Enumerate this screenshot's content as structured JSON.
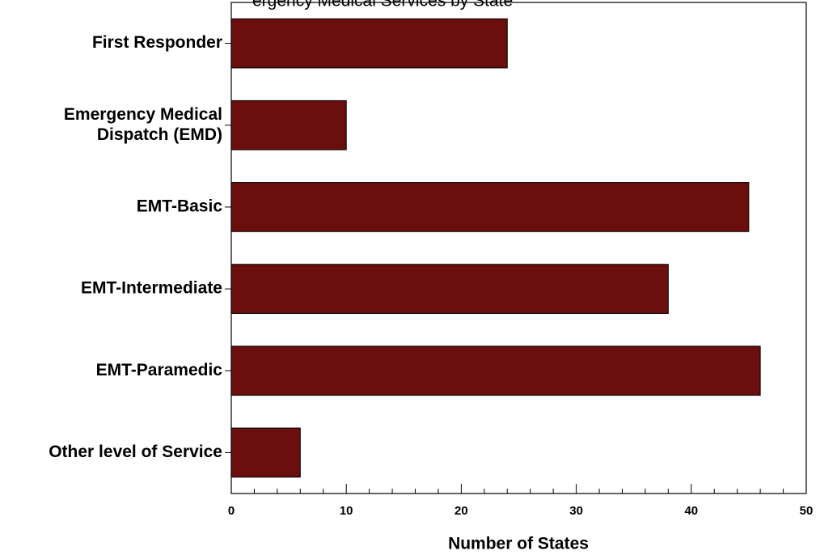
{
  "chart_data": {
    "type": "bar",
    "orientation": "horizontal",
    "title_fragment": "ergency Medical Services by State",
    "categories": [
      [
        "First Responder"
      ],
      [
        "Emergency Medical",
        "Dispatch (EMD)"
      ],
      [
        "EMT-Basic"
      ],
      [
        "EMT-Intermediate"
      ],
      [
        "EMT-Paramedic"
      ],
      [
        "Other level of Service"
      ]
    ],
    "values": [
      24,
      10,
      45,
      38,
      46,
      6
    ],
    "xlabel": "Number of States",
    "xlim": [
      0,
      50
    ],
    "xticks": [
      0,
      10,
      20,
      30,
      40,
      50
    ],
    "grid": false,
    "legend": "none",
    "bar_color": "#6b0e0e"
  }
}
